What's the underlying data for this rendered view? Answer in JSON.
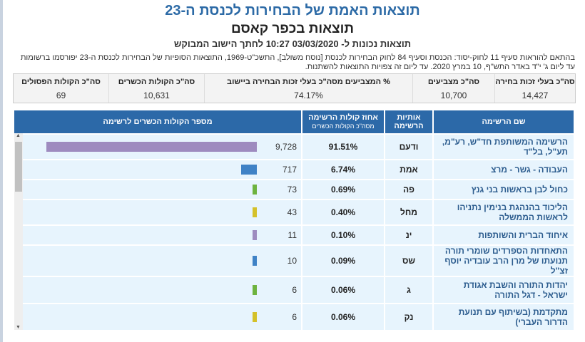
{
  "title": "תוצאות האמת של הבחירות לכנסת ה-23",
  "subtitle": "תוצאות בכפר קאסם",
  "timestamp_line": "תוצאות נכונות ל- 03/03/2020 10:27  לחתך הישוב המבוקש",
  "note": "בהתאם להוראות סעיף 11 לחוק-יסוד: הכנסת וסעיף 84 לחוק הבחירות לכנסת [נוסח משולב], התשכ\"ט-1969, התוצאות הסופיות של הבחירות לכנסת ה-23 יפורסמו ברשומות עד ליום ג' י\"ד באדר התש\"ף, 10 במרץ 2020. עד ליום זה צפויות התוצאות להשתנות.",
  "summary": [
    {
      "label": "סה\"כ בעלי זכות בחירה",
      "value": "14,427"
    },
    {
      "label": "סה\"כ מצביעים",
      "value": "10,700"
    },
    {
      "label": "% המצביעים מסה\"כ בעלי זכות הבחירה ביישוב",
      "value": "74.17%"
    },
    {
      "label": "סה\"כ הקולות הכשרים",
      "value": "10,631"
    },
    {
      "label": "סה\"כ הקולות הפסולים",
      "value": "69"
    }
  ],
  "table": {
    "headers": {
      "name": "שם הרשימה",
      "letters": "אותיות הרשימה",
      "pct": "אחוז קולות הרשימה",
      "pct_sub": "מסה\"כ הקולות הכשרים",
      "votes": "מספר הקולות הכשרים לרשימה"
    },
    "rows": [
      {
        "name": "הרשימה המשותפת חד\"ש, רע\"מ, תע\"ל, בל\"ד",
        "letters": "ודעם",
        "pct": "91.51%",
        "votes": "9,728",
        "value": 9728,
        "color": "#9e8bbf"
      },
      {
        "name": "העבודה - גשר - מרצ",
        "letters": "אמת",
        "pct": "6.74%",
        "votes": "717",
        "value": 717,
        "color": "#3f82c6"
      },
      {
        "name": "כחול לבן בראשות בני גנץ",
        "letters": "פה",
        "pct": "0.69%",
        "votes": "73",
        "value": 73,
        "color": "#6db33f"
      },
      {
        "name": "הליכוד בהנהגת בנימין נתניהו לראשות הממשלה",
        "letters": "מחל",
        "pct": "0.40%",
        "votes": "43",
        "value": 43,
        "color": "#d4c12a"
      },
      {
        "name": "איחוד הברית והשותפות",
        "letters": "ינ",
        "pct": "0.10%",
        "votes": "11",
        "value": 11,
        "color": "#9e8bbf"
      },
      {
        "name": "התאחדות הספרדים שומרי תורה תנועתו של מרן הרב עובדיה יוסף זצ\"ל",
        "letters": "שס",
        "pct": "0.09%",
        "votes": "10",
        "value": 10,
        "color": "#3f82c6"
      },
      {
        "name": "יהדות התורה והשבת אגודת ישראל - דגל התורה",
        "letters": "ג",
        "pct": "0.06%",
        "votes": "6",
        "value": 6,
        "color": "#6db33f"
      },
      {
        "name": "מתקדמת (בשיתוף עם תנועת הדרור העברי)",
        "letters": "נק",
        "pct": "0.06%",
        "votes": "6",
        "value": 6,
        "color": "#d4c12a"
      }
    ]
  }
}
